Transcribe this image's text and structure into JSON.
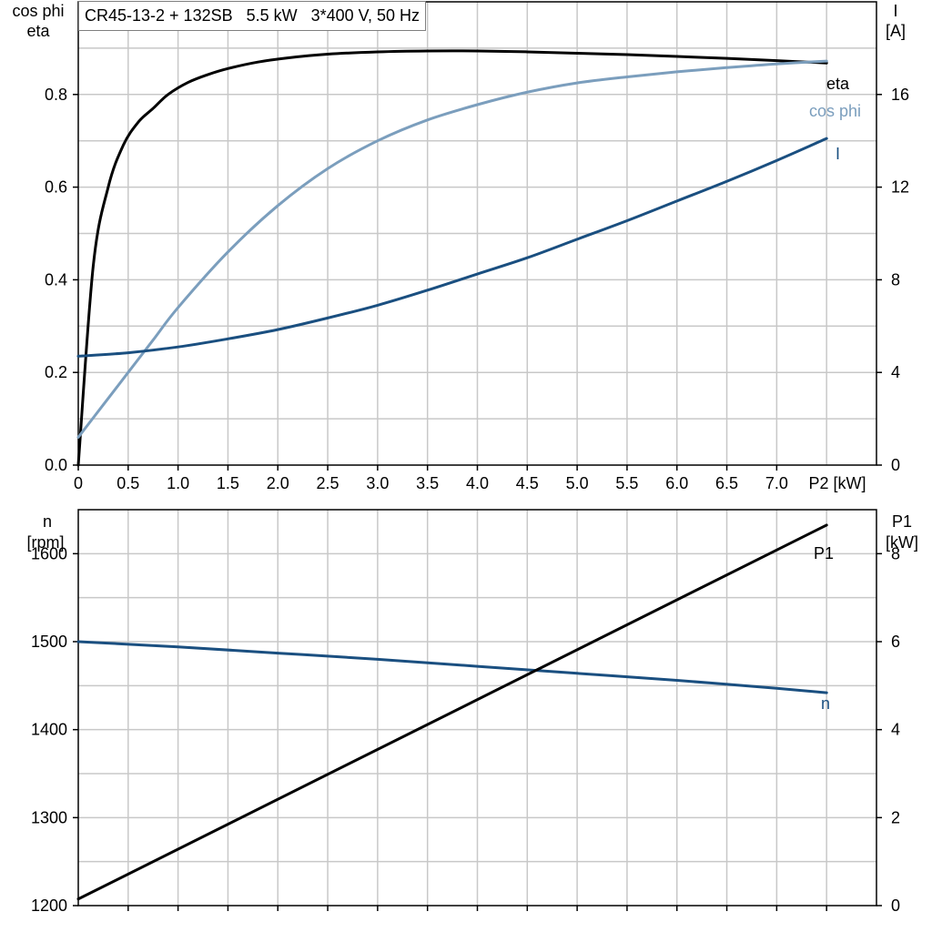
{
  "title": "CR45-13-2 + 132SB   5.5 kW   3*400 V, 50 Hz",
  "colors": {
    "eta": "#000000",
    "cos_phi": "#7b9ebd",
    "current": "#1a4f80",
    "speed": "#1a4f80",
    "p1": "#000000",
    "grid": "#c8c8c8"
  },
  "top_chart": {
    "y_left_label": [
      "cos phi",
      "eta"
    ],
    "y_right_label": [
      "I",
      "[A]"
    ],
    "x_label": "P2 [kW]",
    "x_ticks": [
      "0",
      "0.5",
      "1.0",
      "1.5",
      "2.0",
      "2.5",
      "3.0",
      "3.5",
      "4.0",
      "4.5",
      "5.0",
      "5.5",
      "6.0",
      "6.5",
      "7.0"
    ],
    "y_left_ticks": [
      "0.0",
      "0.2",
      "0.4",
      "0.6",
      "0.8"
    ],
    "y_right_ticks": [
      "0",
      "4",
      "8",
      "12",
      "16"
    ],
    "series_labels": {
      "eta": "eta",
      "cos_phi": "cos phi",
      "current": "I"
    }
  },
  "bottom_chart": {
    "y_left_label": [
      "n",
      "[rpm]"
    ],
    "y_right_label": [
      "P1",
      "[kW]"
    ],
    "y_left_ticks": [
      "1200",
      "1300",
      "1400",
      "1500",
      "1600"
    ],
    "y_right_ticks": [
      "0",
      "2",
      "4",
      "6",
      "8"
    ],
    "series_labels": {
      "speed": "n",
      "p1": "P1"
    }
  },
  "chart_data": [
    {
      "type": "line",
      "title": "CR45-13-2 + 132SB   5.5 kW   3*400 V, 50 Hz",
      "xlabel": "P2 [kW]",
      "ylabel": "cos phi / eta",
      "y2label": "I [A]",
      "xlim": [
        0,
        8
      ],
      "ylim": [
        0,
        1.0
      ],
      "y2lim": [
        0,
        20
      ],
      "grid": true,
      "series": [
        {
          "name": "eta",
          "axis": "left",
          "x": [
            0,
            0.15,
            0.3,
            0.45,
            0.6,
            0.75,
            0.9,
            1.1,
            1.3,
            1.5,
            1.8,
            2.1,
            2.5,
            3.0,
            3.5,
            4.0,
            4.5,
            5.0,
            5.5,
            6.0,
            6.5,
            7.0,
            7.5
          ],
          "y": [
            0.0,
            0.43,
            0.6,
            0.69,
            0.74,
            0.77,
            0.8,
            0.826,
            0.843,
            0.856,
            0.87,
            0.879,
            0.887,
            0.892,
            0.894,
            0.894,
            0.892,
            0.889,
            0.886,
            0.882,
            0.878,
            0.873,
            0.868
          ]
        },
        {
          "name": "cos phi",
          "axis": "left",
          "x": [
            0,
            0.25,
            0.5,
            0.75,
            1.0,
            1.5,
            2.0,
            2.5,
            3.0,
            3.5,
            4.0,
            4.5,
            5.0,
            5.5,
            6.0,
            6.5,
            7.0,
            7.5
          ],
          "y": [
            0.06,
            0.13,
            0.2,
            0.27,
            0.34,
            0.46,
            0.56,
            0.64,
            0.7,
            0.745,
            0.778,
            0.805,
            0.825,
            0.838,
            0.849,
            0.858,
            0.866,
            0.872
          ]
        },
        {
          "name": "I",
          "axis": "right",
          "x": [
            0,
            0.5,
            1.0,
            1.5,
            2.0,
            2.5,
            3.0,
            3.5,
            4.0,
            4.5,
            5.0,
            5.5,
            6.0,
            6.5,
            7.0,
            7.5
          ],
          "y": [
            4.7,
            4.85,
            5.1,
            5.45,
            5.85,
            6.35,
            6.9,
            7.55,
            8.25,
            8.95,
            9.75,
            10.55,
            11.4,
            12.25,
            13.15,
            14.1
          ]
        }
      ]
    },
    {
      "type": "line",
      "xlabel": "P2 [kW]",
      "ylabel": "n [rpm]",
      "y2label": "P1 [kW]",
      "xlim": [
        0,
        8
      ],
      "ylim": [
        1200,
        1650
      ],
      "y2lim": [
        0,
        9
      ],
      "grid": true,
      "series": [
        {
          "name": "n",
          "axis": "left",
          "x": [
            0,
            1.0,
            2.0,
            3.0,
            4.0,
            5.0,
            6.0,
            7.0,
            7.5
          ],
          "y": [
            1500,
            1494,
            1487,
            1480,
            1472,
            1464,
            1456,
            1447,
            1442
          ]
        },
        {
          "name": "P1",
          "axis": "right",
          "x": [
            0,
            7.5
          ],
          "y": [
            0.15,
            8.65
          ]
        }
      ]
    }
  ]
}
